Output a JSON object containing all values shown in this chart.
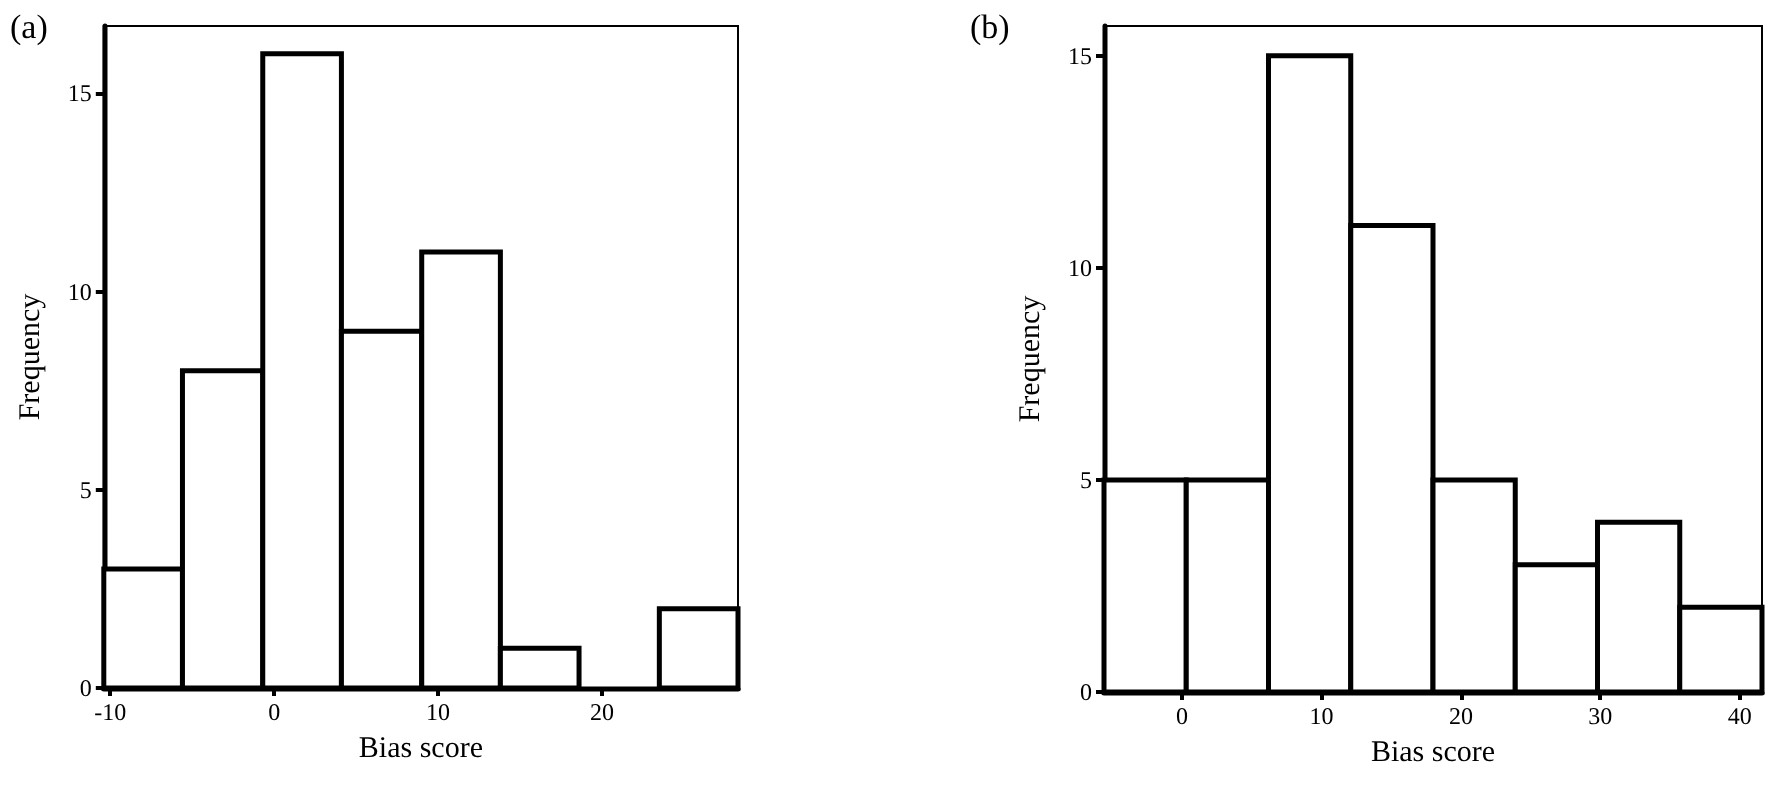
{
  "chart_data": [
    {
      "type": "histogram",
      "title": "(a)",
      "xlabel": "Bias score",
      "ylabel": "Frequency",
      "color": "#ffffff",
      "bins": [
        -10.4,
        -5.6,
        -0.7,
        4.1,
        9.0,
        13.8,
        18.6,
        23.5,
        28.3
      ],
      "values": [
        3,
        8,
        16,
        9,
        11,
        1,
        0,
        2
      ],
      "xlim": [
        -10.4,
        28.3
      ],
      "xticks": [
        -10,
        0,
        10,
        20
      ],
      "ylim": [
        0,
        16.7
      ],
      "yticks": [
        0,
        5,
        10,
        15
      ]
    },
    {
      "type": "histogram",
      "title": "(b)",
      "xlabel": "Bias score",
      "ylabel": "Frequency",
      "color": "#ffffff",
      "bins": [
        -5.6,
        0.3,
        6.2,
        12.1,
        18.0,
        23.9,
        29.8,
        35.7,
        41.6
      ],
      "values": [
        5,
        5,
        15,
        11,
        5,
        3,
        4,
        2
      ],
      "xlim": [
        -5.6,
        41.6
      ],
      "xticks": [
        0,
        10,
        20,
        30,
        40
      ],
      "ylim": [
        0,
        15.7
      ],
      "yticks": [
        0,
        5,
        10,
        15
      ]
    }
  ]
}
